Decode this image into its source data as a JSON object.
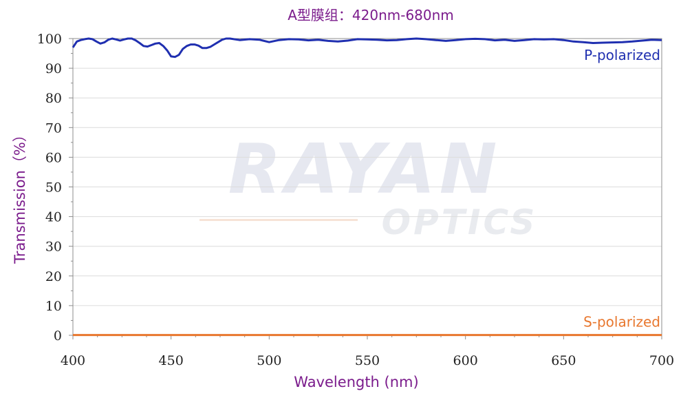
{
  "chart_data": {
    "type": "line",
    "title": "A型膜组：420nm-680nm",
    "xlabel": "Wavelength (nm)",
    "ylabel": "Transmission（%）",
    "xlim": [
      400,
      700
    ],
    "ylim": [
      0,
      100
    ],
    "x_ticks": [
      "400",
      "450",
      "500",
      "550",
      "600",
      "650",
      "700"
    ],
    "y_ticks": [
      "0",
      "10",
      "20",
      "30",
      "40",
      "50",
      "60",
      "70",
      "80",
      "90",
      "100"
    ],
    "grid": true,
    "watermark": {
      "main": "RAYAN",
      "sub": "OPTICS"
    },
    "series": [
      {
        "name": "P-polarized",
        "color": "#1f2fb0",
        "x": [
          400,
          402,
          404,
          406,
          408,
          410,
          412,
          414,
          416,
          418,
          420,
          422,
          424,
          426,
          428,
          430,
          432,
          434,
          436,
          438,
          440,
          442,
          444,
          446,
          448,
          450,
          452,
          454,
          456,
          458,
          460,
          462,
          464,
          466,
          468,
          470,
          472,
          474,
          476,
          478,
          480,
          485,
          490,
          495,
          500,
          505,
          510,
          515,
          520,
          525,
          530,
          535,
          540,
          545,
          550,
          555,
          560,
          565,
          570,
          575,
          580,
          585,
          590,
          595,
          600,
          605,
          610,
          615,
          620,
          625,
          630,
          635,
          640,
          645,
          650,
          655,
          660,
          665,
          670,
          675,
          680,
          685,
          690,
          695,
          700
        ],
        "y": [
          97,
          99,
          99.5,
          99.8,
          100,
          99.8,
          99,
          98.3,
          98.7,
          99.6,
          100,
          99.7,
          99.3,
          99.7,
          100,
          100,
          99.4,
          98.5,
          97.5,
          97.3,
          97.8,
          98.3,
          98.5,
          97.5,
          96,
          94,
          93.8,
          94.5,
          96.5,
          97.5,
          98,
          98,
          97.6,
          96.8,
          96.8,
          97.2,
          98,
          98.8,
          99.6,
          100,
          100,
          99.5,
          99.8,
          99.6,
          98.8,
          99.5,
          99.8,
          99.7,
          99.4,
          99.6,
          99.2,
          99,
          99.3,
          99.8,
          99.7,
          99.6,
          99.4,
          99.5,
          99.8,
          100,
          99.8,
          99.5,
          99.2,
          99.5,
          99.8,
          99.9,
          99.8,
          99.4,
          99.6,
          99.2,
          99.5,
          99.8,
          99.7,
          99.8,
          99.5,
          99,
          98.8,
          98.5,
          98.6,
          98.7,
          98.8,
          99,
          99.3,
          99.6,
          99.5
        ]
      },
      {
        "name": "S-polarized",
        "color": "#e8772e",
        "x": [
          400,
          450,
          500,
          550,
          600,
          650,
          700
        ],
        "y": [
          0.1,
          0.1,
          0.1,
          0.1,
          0.1,
          0.1,
          0.1
        ]
      }
    ]
  }
}
